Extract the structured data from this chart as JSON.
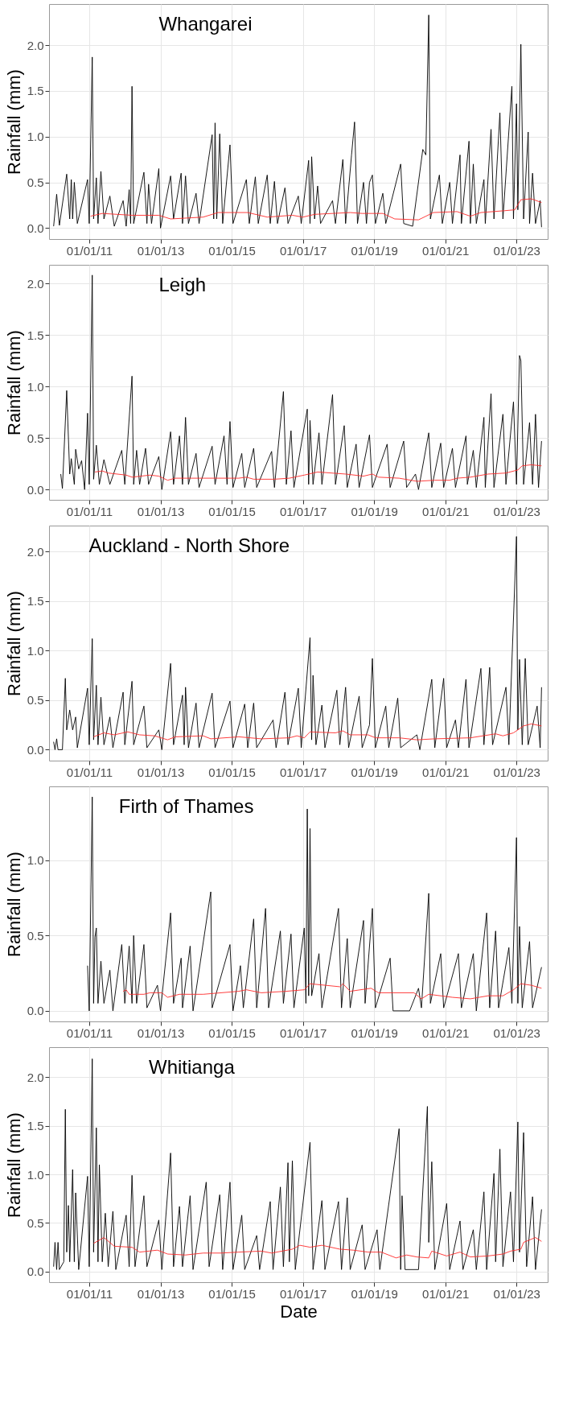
{
  "chart_data": [
    {
      "type": "line",
      "title": "Whangarei",
      "ylabel": "Rainfall (mm)",
      "grid": true,
      "xlim": [
        "2009-11-15",
        "2023-11-17"
      ],
      "xticks": [
        {
          "value": "2011-01-01",
          "label": "01/01/11"
        },
        {
          "value": "2013-01-01",
          "label": "01/01/13"
        },
        {
          "value": "2015-01-01",
          "label": "01/01/15"
        },
        {
          "value": "2017-01-01",
          "label": "01/01/17"
        },
        {
          "value": "2019-01-01",
          "label": "01/01/19"
        },
        {
          "value": "2021-01-01",
          "label": "01/01/21"
        },
        {
          "value": "2023-01-01",
          "label": "01/01/23"
        }
      ],
      "ylim": [
        -0.12,
        2.45
      ],
      "yticks": [
        {
          "value": 0,
          "label": "0.0"
        },
        {
          "value": 0.5,
          "label": "0.5"
        },
        {
          "value": 1,
          "label": "1.0"
        },
        {
          "value": 1.5,
          "label": "1.5"
        },
        {
          "value": 2,
          "label": "2.0"
        }
      ],
      "series": [
        {
          "color": "#000000",
          "x": [
            "2010-01-01",
            "2010-02-01",
            "2010-03-01",
            "2010-05-15",
            "2010-06-15",
            "2010-07-01",
            "2010-07-15",
            "2010-08-01",
            "2010-09-01",
            "2010-12-15",
            "2011-01-01",
            "2011-02-01",
            "2011-02-15",
            "2011-03-15",
            "2011-04-01",
            "2011-05-01",
            "2011-06-01",
            "2011-08-01",
            "2011-09-15",
            "2011-12-15",
            "2012-01-15",
            "2012-02-15",
            "2012-03-01",
            "2012-03-15",
            "2012-04-01",
            "2012-07-15",
            "2012-08-15",
            "2012-09-01",
            "2012-10-01",
            "2012-12-15",
            "2013-01-01",
            "2013-04-15",
            "2013-05-15",
            "2013-08-01",
            "2013-08-15",
            "2013-09-15",
            "2013-10-15",
            "2014-01-01",
            "2014-02-01",
            "2014-06-15",
            "2014-07-01",
            "2014-07-15",
            "2014-08-01",
            "2014-09-01",
            "2014-10-01",
            "2014-12-15",
            "2015-01-15",
            "2015-06-01",
            "2015-07-01",
            "2015-09-01",
            "2015-10-01",
            "2016-01-01",
            "2016-02-01",
            "2016-03-15",
            "2016-04-15",
            "2016-07-01",
            "2016-08-01",
            "2016-11-15",
            "2016-12-15",
            "2017-03-01",
            "2017-03-15",
            "2017-04-01",
            "2017-05-01",
            "2017-06-01",
            "2017-07-01",
            "2017-11-01",
            "2017-12-01",
            "2018-02-15",
            "2018-03-15",
            "2018-05-15",
            "2018-06-15",
            "2018-07-15",
            "2018-09-15",
            "2018-10-15",
            "2018-11-15",
            "2018-12-15",
            "2019-01-15",
            "2019-04-01",
            "2019-05-01",
            "2019-10-01",
            "2019-11-01",
            "2020-02-01",
            "2020-05-15",
            "2020-06-15",
            "2020-07-15",
            "2020-08-01",
            "2020-11-01",
            "2020-12-01",
            "2021-02-15",
            "2021-03-15",
            "2021-06-01",
            "2021-06-15",
            "2021-09-01",
            "2021-09-15",
            "2021-10-15",
            "2021-11-15",
            "2022-02-01",
            "2022-02-15",
            "2022-04-15",
            "2022-05-15",
            "2022-07-15",
            "2022-08-15",
            "2022-11-15",
            "2022-12-01",
            "2023-01-01",
            "2023-01-15",
            "2023-02-15",
            "2023-03-15",
            "2023-05-01",
            "2023-05-15",
            "2023-06-15",
            "2023-07-15",
            "2023-09-01",
            "2023-09-15"
          ],
          "values": [
            0.02,
            0.37,
            0.03,
            0.59,
            0.1,
            0.53,
            0.1,
            0.5,
            0.05,
            0.53,
            0.05,
            1.87,
            0.1,
            0.55,
            0.05,
            0.62,
            0.1,
            0.35,
            0.02,
            0.3,
            0.02,
            0.42,
            0.05,
            1.55,
            0.05,
            0.61,
            0.05,
            0.48,
            0.05,
            0.65,
            0.0,
            0.57,
            0.1,
            0.6,
            0.05,
            0.57,
            0.05,
            0.38,
            0.05,
            1.02,
            0.1,
            1.15,
            0.1,
            1.03,
            0.05,
            0.91,
            0.05,
            0.53,
            0.05,
            0.56,
            0.05,
            0.58,
            0.05,
            0.51,
            0.05,
            0.44,
            0.05,
            0.35,
            0.05,
            0.74,
            0.05,
            0.78,
            0.1,
            0.46,
            0.05,
            0.3,
            0.05,
            0.75,
            0.05,
            0.8,
            1.16,
            0.05,
            0.5,
            0.05,
            0.5,
            0.58,
            0.05,
            0.38,
            0.05,
            0.7,
            0.05,
            0.02,
            0.86,
            0.8,
            2.33,
            0.1,
            0.58,
            0.05,
            0.5,
            0.05,
            0.8,
            0.05,
            0.95,
            0.05,
            0.7,
            0.05,
            0.53,
            0.05,
            1.08,
            0.1,
            1.26,
            0.1,
            1.55,
            0.1,
            1.36,
            0.2,
            2.01,
            0.1,
            1.05,
            0.05,
            0.6,
            0.05,
            0.3,
            0.01
          ]
        },
        {
          "color": "#ff2a2a",
          "x": [
            "2011-01-15",
            "2011-05-15",
            "2012-03-15",
            "2012-12-15",
            "2013-04-15",
            "2014-03-15",
            "2014-08-15",
            "2015-06-15",
            "2016-01-01",
            "2016-09-15",
            "2017-01-01",
            "2017-05-01",
            "2018-05-01",
            "2018-09-01",
            "2019-04-01",
            "2019-08-01",
            "2020-04-01",
            "2020-09-01",
            "2021-05-01",
            "2021-09-15",
            "2022-01-01",
            "2022-09-01",
            "2022-12-15",
            "2023-02-15",
            "2023-06-01",
            "2023-09-15"
          ],
          "values": [
            0.13,
            0.16,
            0.14,
            0.14,
            0.1,
            0.12,
            0.17,
            0.17,
            0.12,
            0.14,
            0.12,
            0.15,
            0.17,
            0.16,
            0.16,
            0.1,
            0.09,
            0.17,
            0.18,
            0.13,
            0.17,
            0.19,
            0.2,
            0.31,
            0.32,
            0.28
          ]
        }
      ]
    },
    {
      "type": "line",
      "title": "Leigh",
      "ylabel": "Rainfall (mm)",
      "grid": true,
      "xlim": [
        "2009-11-15",
        "2023-11-17"
      ],
      "xticks": [
        {
          "value": "2011-01-01",
          "label": "01/01/11"
        },
        {
          "value": "2013-01-01",
          "label": "01/01/13"
        },
        {
          "value": "2015-01-01",
          "label": "01/01/15"
        },
        {
          "value": "2017-01-01",
          "label": "01/01/17"
        },
        {
          "value": "2019-01-01",
          "label": "01/01/19"
        },
        {
          "value": "2021-01-01",
          "label": "01/01/21"
        },
        {
          "value": "2023-01-01",
          "label": "01/01/23"
        }
      ],
      "ylim": [
        -0.1,
        2.18
      ],
      "yticks": [
        {
          "value": 0,
          "label": "0.0"
        },
        {
          "value": 0.5,
          "label": "0.5"
        },
        {
          "value": 1,
          "label": "1.0"
        },
        {
          "value": 1.5,
          "label": "1.5"
        },
        {
          "value": 2,
          "label": "2.0"
        }
      ],
      "series": [
        {
          "color": "#000000",
          "x": [
            "2010-03-15",
            "2010-04-01",
            "2010-05-15",
            "2010-06-15",
            "2010-07-01",
            "2010-08-01",
            "2010-08-15",
            "2010-09-15",
            "2010-10-15",
            "2010-11-15",
            "2010-12-15",
            "2011-01-01",
            "2011-02-01",
            "2011-02-15",
            "2011-03-15",
            "2011-04-15",
            "2011-06-01",
            "2011-08-01",
            "2011-12-01",
            "2012-01-01",
            "2012-03-15",
            "2012-04-01",
            "2012-05-01",
            "2012-06-01",
            "2012-08-01",
            "2012-09-01",
            "2012-12-15",
            "2013-01-15",
            "2013-04-15",
            "2013-05-15",
            "2013-07-15",
            "2013-08-15",
            "2013-09-15",
            "2013-10-15",
            "2014-01-01",
            "2014-02-01",
            "2014-06-15",
            "2014-07-15",
            "2014-10-15",
            "2014-11-15",
            "2014-12-15",
            "2015-01-15",
            "2015-04-15",
            "2015-05-15",
            "2015-08-15",
            "2015-09-15",
            "2016-02-15",
            "2016-03-15",
            "2016-06-15",
            "2016-07-15",
            "2016-09-01",
            "2016-10-01",
            "2017-02-15",
            "2017-03-01",
            "2017-03-15",
            "2017-04-15",
            "2017-06-15",
            "2017-07-15",
            "2017-11-01",
            "2017-12-01",
            "2018-03-01",
            "2018-04-01",
            "2018-07-01",
            "2018-08-01",
            "2018-11-15",
            "2018-12-15",
            "2019-05-15",
            "2019-06-15",
            "2019-11-01",
            "2019-12-01",
            "2020-03-01",
            "2020-04-01",
            "2020-07-15",
            "2020-08-15",
            "2020-11-15",
            "2020-12-15",
            "2021-03-15",
            "2021-04-15",
            "2021-08-01",
            "2021-08-15",
            "2021-10-15",
            "2021-11-15",
            "2022-02-01",
            "2022-02-15",
            "2022-04-15",
            "2022-05-15",
            "2022-08-15",
            "2022-09-15",
            "2022-12-01",
            "2023-01-01",
            "2023-02-01",
            "2023-02-15",
            "2023-03-15",
            "2023-05-15",
            "2023-06-15",
            "2023-07-15",
            "2023-08-15",
            "2023-09-15"
          ],
          "values": [
            0.15,
            0.01,
            0.96,
            0.15,
            0.3,
            0.05,
            0.39,
            0.2,
            0.28,
            0.0,
            0.74,
            0.05,
            2.08,
            0.1,
            0.43,
            0.05,
            0.29,
            0.05,
            0.38,
            0.05,
            1.1,
            0.05,
            0.38,
            0.05,
            0.4,
            0.05,
            0.32,
            0.0,
            0.56,
            0.05,
            0.52,
            0.05,
            0.7,
            0.05,
            0.35,
            0.02,
            0.42,
            0.05,
            0.52,
            0.05,
            0.66,
            0.02,
            0.35,
            0.02,
            0.4,
            0.02,
            0.37,
            0.02,
            0.95,
            0.05,
            0.57,
            0.02,
            0.78,
            0.05,
            0.67,
            0.05,
            0.55,
            0.05,
            0.92,
            0.05,
            0.62,
            0.02,
            0.44,
            0.02,
            0.53,
            0.02,
            0.44,
            0.02,
            0.47,
            0.02,
            0.15,
            0.0,
            0.55,
            0.02,
            0.45,
            0.02,
            0.4,
            0.02,
            0.52,
            0.05,
            0.38,
            0.02,
            0.7,
            0.02,
            0.93,
            0.02,
            0.73,
            0.05,
            0.85,
            0.05,
            1.3,
            1.25,
            0.05,
            0.65,
            0.05,
            0.73,
            0.02,
            0.47
          ]
        },
        {
          "color": "#ff2a2a",
          "x": [
            "2011-03-01",
            "2011-05-15",
            "2011-07-15",
            "2012-01-15",
            "2012-03-15",
            "2012-09-15",
            "2012-12-15",
            "2013-03-15",
            "2013-06-01",
            "2014-03-15",
            "2015-03-15",
            "2015-06-01",
            "2015-08-15",
            "2016-03-15",
            "2016-08-15",
            "2017-01-15",
            "2017-06-01",
            "2018-03-15",
            "2018-09-15",
            "2018-12-15",
            "2019-02-15",
            "2019-09-15",
            "2020-03-15",
            "2020-09-15",
            "2021-02-15",
            "2021-05-01",
            "2021-09-15",
            "2022-03-15",
            "2022-09-15",
            "2023-01-15",
            "2023-03-01",
            "2023-06-01",
            "2023-09-15"
          ],
          "values": [
            0.17,
            0.18,
            0.16,
            0.14,
            0.12,
            0.14,
            0.13,
            0.09,
            0.11,
            0.11,
            0.11,
            0.12,
            0.1,
            0.1,
            0.11,
            0.14,
            0.17,
            0.15,
            0.13,
            0.15,
            0.12,
            0.11,
            0.08,
            0.09,
            0.09,
            0.11,
            0.12,
            0.15,
            0.16,
            0.19,
            0.23,
            0.24,
            0.23
          ]
        }
      ]
    },
    {
      "type": "line",
      "title": "Auckland - North Shore",
      "ylabel": "Rainfall (mm)",
      "grid": true,
      "xlim": [
        "2009-11-15",
        "2023-11-17"
      ],
      "xticks": [
        {
          "value": "2011-01-01",
          "label": "01/01/11"
        },
        {
          "value": "2013-01-01",
          "label": "01/01/13"
        },
        {
          "value": "2015-01-01",
          "label": "01/01/15"
        },
        {
          "value": "2017-01-01",
          "label": "01/01/17"
        },
        {
          "value": "2019-01-01",
          "label": "01/01/19"
        },
        {
          "value": "2021-01-01",
          "label": "01/01/21"
        },
        {
          "value": "2023-01-01",
          "label": "01/01/23"
        }
      ],
      "ylim": [
        -0.11,
        2.26
      ],
      "yticks": [
        {
          "value": 0,
          "label": "0.0"
        },
        {
          "value": 0.5,
          "label": "0.5"
        },
        {
          "value": 1,
          "label": "1.0"
        },
        {
          "value": 1.5,
          "label": "1.5"
        },
        {
          "value": 2,
          "label": "2.0"
        }
      ],
      "series": [
        {
          "color": "#000000",
          "x": [
            "2010-01-01",
            "2010-01-15",
            "2010-02-01",
            "2010-02-15",
            "2010-04-01",
            "2010-05-01",
            "2010-05-15",
            "2010-06-15",
            "2010-07-15",
            "2010-08-15",
            "2010-09-01",
            "2010-12-15",
            "2011-01-01",
            "2011-02-01",
            "2011-02-15",
            "2011-03-15",
            "2011-04-01",
            "2011-05-01",
            "2011-06-01",
            "2011-08-01",
            "2011-09-01",
            "2011-12-15",
            "2012-01-01",
            "2012-03-15",
            "2012-04-01",
            "2012-07-15",
            "2012-08-15",
            "2012-12-15",
            "2013-01-15",
            "2013-04-15",
            "2013-05-15",
            "2013-08-15",
            "2013-09-01",
            "2013-09-15",
            "2013-10-15",
            "2014-01-01",
            "2014-02-01",
            "2014-06-15",
            "2014-07-15",
            "2014-12-15",
            "2015-01-15",
            "2015-05-15",
            "2015-06-15",
            "2015-08-15",
            "2015-09-15",
            "2016-03-01",
            "2016-04-01",
            "2016-07-01",
            "2016-08-01",
            "2016-11-15",
            "2016-12-15",
            "2017-03-15",
            "2017-04-01",
            "2017-04-15",
            "2017-05-15",
            "2017-07-15",
            "2017-08-15",
            "2017-12-15",
            "2018-01-15",
            "2018-03-15",
            "2018-04-15",
            "2018-08-01",
            "2018-09-01",
            "2018-11-15",
            "2018-12-15",
            "2019-01-15",
            "2019-05-01",
            "2019-06-01",
            "2019-09-01",
            "2019-10-01",
            "2020-03-15",
            "2020-04-15",
            "2020-08-15",
            "2020-09-15",
            "2020-12-15",
            "2021-01-15",
            "2021-04-15",
            "2021-05-15",
            "2021-08-01",
            "2021-09-01",
            "2022-01-01",
            "2022-02-01",
            "2022-04-01",
            "2022-05-01",
            "2022-09-15",
            "2022-10-15",
            "2023-01-01",
            "2023-01-15",
            "2023-02-01",
            "2023-03-01",
            "2023-04-01",
            "2023-05-01",
            "2023-08-01",
            "2023-09-01",
            "2023-09-15"
          ],
          "values": [
            0.08,
            0.0,
            0.11,
            0.0,
            0.0,
            0.72,
            0.2,
            0.4,
            0.2,
            0.33,
            0.02,
            0.62,
            0.05,
            1.12,
            0.1,
            0.65,
            0.05,
            0.53,
            0.05,
            0.33,
            0.02,
            0.58,
            0.05,
            0.69,
            0.05,
            0.44,
            0.02,
            0.2,
            0.0,
            0.87,
            0.05,
            0.55,
            0.05,
            0.63,
            0.02,
            0.47,
            0.02,
            0.57,
            0.02,
            0.49,
            0.02,
            0.46,
            0.02,
            0.47,
            0.02,
            0.3,
            0.02,
            0.58,
            0.05,
            0.62,
            0.02,
            1.13,
            0.1,
            0.75,
            0.05,
            0.45,
            0.02,
            0.6,
            0.05,
            0.63,
            0.02,
            0.54,
            0.02,
            0.25,
            0.92,
            0.02,
            0.44,
            0.02,
            0.52,
            0.02,
            0.15,
            0.0,
            0.71,
            0.02,
            0.72,
            0.02,
            0.3,
            0.02,
            0.71,
            0.02,
            0.82,
            0.05,
            0.83,
            0.05,
            0.63,
            0.05,
            2.15,
            0.2,
            0.91,
            0.05,
            0.92,
            0.05,
            0.44,
            0.02,
            0.63
          ]
        },
        {
          "color": "#ff2a2a",
          "x": [
            "2011-02-15",
            "2011-06-01",
            "2011-09-15",
            "2012-02-01",
            "2012-06-01",
            "2012-11-01",
            "2013-03-15",
            "2013-06-01",
            "2014-03-15",
            "2014-06-01",
            "2015-03-15",
            "2015-11-01",
            "2016-08-15",
            "2016-11-01",
            "2017-01-15",
            "2017-03-15",
            "2017-12-01",
            "2018-02-15",
            "2018-05-01",
            "2018-11-01",
            "2019-01-15",
            "2019-09-15",
            "2020-03-15",
            "2020-09-15",
            "2021-09-15",
            "2022-06-01",
            "2022-08-15",
            "2022-12-01",
            "2023-03-15",
            "2023-06-01",
            "2023-09-15"
          ],
          "values": [
            0.13,
            0.17,
            0.15,
            0.18,
            0.15,
            0.14,
            0.1,
            0.13,
            0.14,
            0.11,
            0.13,
            0.11,
            0.12,
            0.14,
            0.12,
            0.18,
            0.17,
            0.19,
            0.15,
            0.15,
            0.12,
            0.12,
            0.1,
            0.11,
            0.12,
            0.16,
            0.14,
            0.17,
            0.24,
            0.26,
            0.24
          ]
        }
      ]
    },
    {
      "type": "line",
      "title": "Firth of Thames",
      "ylabel": "Rainfall (mm)",
      "grid": true,
      "xlim": [
        "2009-11-15",
        "2023-11-17"
      ],
      "xticks": [
        {
          "value": "2011-01-01",
          "label": "01/01/11"
        },
        {
          "value": "2013-01-01",
          "label": "01/01/13"
        },
        {
          "value": "2015-01-01",
          "label": "01/01/15"
        },
        {
          "value": "2017-01-01",
          "label": "01/01/17"
        },
        {
          "value": "2019-01-01",
          "label": "01/01/19"
        },
        {
          "value": "2021-01-01",
          "label": "01/01/21"
        },
        {
          "value": "2023-01-01",
          "label": "01/01/23"
        }
      ],
      "ylim": [
        -0.07,
        1.49
      ],
      "yticks": [
        {
          "value": 0,
          "label": "0.0"
        },
        {
          "value": 0.5,
          "label": "0.5"
        },
        {
          "value": 1,
          "label": "1.0"
        }
      ],
      "series": [
        {
          "color": "#000000",
          "x": [
            "2010-12-15",
            "2011-01-01",
            "2011-02-01",
            "2011-02-15",
            "2011-03-01",
            "2011-03-15",
            "2011-04-01",
            "2011-05-01",
            "2011-06-01",
            "2011-08-01",
            "2011-09-01",
            "2011-12-01",
            "2012-01-01",
            "2012-02-15",
            "2012-03-15",
            "2012-04-01",
            "2012-05-01",
            "2012-07-15",
            "2012-08-15",
            "2012-12-01",
            "2013-01-01",
            "2013-04-15",
            "2013-05-15",
            "2013-08-01",
            "2013-08-15",
            "2013-11-01",
            "2013-12-01",
            "2014-06-01",
            "2014-06-15",
            "2014-12-15",
            "2015-01-15",
            "2015-04-01",
            "2015-05-01",
            "2015-08-15",
            "2015-09-15",
            "2015-12-15",
            "2016-01-15",
            "2016-05-15",
            "2016-06-15",
            "2016-09-01",
            "2016-10-01",
            "2017-01-15",
            "2017-02-01",
            "2017-02-15",
            "2017-03-01",
            "2017-03-15",
            "2017-04-01",
            "2017-06-15",
            "2017-07-15",
            "2018-01-01",
            "2018-02-01",
            "2018-04-01",
            "2018-05-01",
            "2018-09-15",
            "2018-10-01",
            "2018-12-15",
            "2019-01-15",
            "2019-06-15",
            "2019-07-15",
            "2020-01-01",
            "2020-04-01",
            "2020-05-01",
            "2020-07-15",
            "2020-08-01",
            "2020-11-15",
            "2020-12-15",
            "2021-05-15",
            "2021-06-15",
            "2021-10-15",
            "2021-11-15",
            "2022-03-01",
            "2022-04-01",
            "2022-06-01",
            "2022-07-01",
            "2022-10-15",
            "2022-11-15",
            "2023-01-01",
            "2023-01-15",
            "2023-02-01",
            "2023-03-01",
            "2023-05-15",
            "2023-06-15",
            "2023-09-15"
          ],
          "values": [
            0.3,
            0.0,
            1.42,
            0.05,
            0.49,
            0.55,
            0.05,
            0.33,
            0.05,
            0.27,
            0.0,
            0.44,
            0.05,
            0.43,
            0.05,
            0.5,
            0.05,
            0.44,
            0.02,
            0.17,
            0.0,
            0.65,
            0.05,
            0.35,
            0.02,
            0.43,
            0.0,
            0.79,
            0.02,
            0.44,
            0.0,
            0.3,
            0.02,
            0.61,
            0.02,
            0.68,
            0.02,
            0.53,
            0.05,
            0.51,
            0.02,
            0.55,
            0.05,
            1.34,
            0.1,
            1.21,
            0.1,
            0.38,
            0.02,
            0.68,
            0.02,
            0.48,
            0.02,
            0.6,
            0.05,
            0.68,
            0.02,
            0.35,
            0.0,
            0.0,
            0.15,
            0.02,
            0.78,
            0.05,
            0.38,
            0.02,
            0.38,
            0.02,
            0.38,
            0.0,
            0.65,
            0.02,
            0.53,
            0.02,
            0.42,
            0.05,
            1.15,
            0.05,
            0.56,
            0.02,
            0.46,
            0.02,
            0.29
          ]
        },
        {
          "color": "#ff2a2a",
          "x": [
            "2011-12-15",
            "2012-01-15",
            "2012-02-15",
            "2012-07-15",
            "2012-09-15",
            "2013-01-15",
            "2013-03-15",
            "2013-07-15",
            "2014-03-15",
            "2015-03-15",
            "2015-06-01",
            "2015-11-01",
            "2016-07-15",
            "2017-01-15",
            "2017-03-15",
            "2018-01-15",
            "2018-02-15",
            "2018-05-01",
            "2018-12-01",
            "2019-02-15",
            "2020-02-15",
            "2020-05-01",
            "2020-07-15",
            "2021-03-15",
            "2021-09-15",
            "2022-03-15",
            "2022-08-15",
            "2022-12-01",
            "2023-02-15",
            "2023-06-01",
            "2023-09-15"
          ],
          "values": [
            0.13,
            0.14,
            0.11,
            0.11,
            0.12,
            0.12,
            0.09,
            0.11,
            0.11,
            0.13,
            0.14,
            0.12,
            0.13,
            0.14,
            0.18,
            0.16,
            0.18,
            0.13,
            0.15,
            0.12,
            0.12,
            0.08,
            0.11,
            0.09,
            0.08,
            0.1,
            0.1,
            0.14,
            0.18,
            0.17,
            0.15
          ]
        }
      ]
    },
    {
      "type": "line",
      "title": "Whitianga",
      "xlabel": "Date",
      "ylabel": "Rainfall (mm)",
      "grid": true,
      "xlim": [
        "2009-11-15",
        "2023-11-17"
      ],
      "xticks": [
        {
          "value": "2011-01-01",
          "label": "01/01/11"
        },
        {
          "value": "2013-01-01",
          "label": "01/01/13"
        },
        {
          "value": "2015-01-01",
          "label": "01/01/15"
        },
        {
          "value": "2017-01-01",
          "label": "01/01/17"
        },
        {
          "value": "2019-01-01",
          "label": "01/01/19"
        },
        {
          "value": "2021-01-01",
          "label": "01/01/21"
        },
        {
          "value": "2023-01-01",
          "label": "01/01/23"
        }
      ],
      "ylim": [
        -0.11,
        2.31
      ],
      "yticks": [
        {
          "value": 0,
          "label": "0.0"
        },
        {
          "value": 0.5,
          "label": "0.5"
        },
        {
          "value": 1,
          "label": "1.0"
        },
        {
          "value": 1.5,
          "label": "1.5"
        },
        {
          "value": 2,
          "label": "2.0"
        }
      ],
      "series": [
        {
          "color": "#000000",
          "x": [
            "2010-01-01",
            "2010-01-15",
            "2010-02-01",
            "2010-02-15",
            "2010-03-01",
            "2010-04-15",
            "2010-05-01",
            "2010-05-15",
            "2010-06-01",
            "2010-06-15",
            "2010-07-15",
            "2010-08-01",
            "2010-08-15",
            "2010-09-15",
            "2010-12-15",
            "2011-01-01",
            "2011-02-01",
            "2011-02-15",
            "2011-03-15",
            "2011-04-01",
            "2011-04-15",
            "2011-05-15",
            "2011-06-15",
            "2011-07-15",
            "2011-09-01",
            "2011-10-01",
            "2012-01-15",
            "2012-02-15",
            "2012-03-15",
            "2012-04-15",
            "2012-07-15",
            "2012-08-15",
            "2012-12-15",
            "2013-01-15",
            "2013-04-15",
            "2013-05-15",
            "2013-07-15",
            "2013-08-15",
            "2013-11-01",
            "2013-12-01",
            "2014-04-15",
            "2014-05-15",
            "2014-09-01",
            "2014-10-01",
            "2014-12-15",
            "2015-01-15",
            "2015-04-15",
            "2015-05-15",
            "2015-09-15",
            "2015-10-15",
            "2016-02-01",
            "2016-03-01",
            "2016-05-15",
            "2016-06-15",
            "2016-08-01",
            "2016-08-15",
            "2016-09-15",
            "2016-10-15",
            "2017-03-15",
            "2017-04-15",
            "2017-07-15",
            "2017-08-15",
            "2018-01-01",
            "2018-02-01",
            "2018-04-01",
            "2018-05-01",
            "2018-09-01",
            "2018-10-01",
            "2019-02-01",
            "2019-03-01",
            "2019-09-15",
            "2019-10-01",
            "2019-10-15",
            "2019-11-15",
            "2020-04-01",
            "2020-07-01",
            "2020-07-15",
            "2020-08-15",
            "2020-09-15",
            "2021-01-15",
            "2021-02-15",
            "2021-06-01",
            "2021-07-01",
            "2021-10-15",
            "2021-11-15",
            "2022-02-01",
            "2022-03-01",
            "2022-05-15",
            "2022-06-01",
            "2022-07-15",
            "2022-08-15",
            "2022-11-01",
            "2022-12-01",
            "2023-01-15",
            "2023-02-01",
            "2023-03-15",
            "2023-04-15",
            "2023-06-15",
            "2023-07-15",
            "2023-09-15"
          ],
          "values": [
            0.05,
            0.3,
            0.02,
            0.3,
            0.02,
            0.1,
            1.67,
            0.2,
            0.68,
            0.1,
            1.05,
            0.1,
            0.81,
            0.02,
            0.98,
            0.05,
            2.19,
            0.2,
            1.48,
            0.1,
            1.1,
            0.1,
            0.6,
            0.05,
            0.62,
            0.02,
            0.58,
            0.05,
            0.99,
            0.05,
            0.78,
            0.05,
            0.53,
            0.02,
            1.22,
            0.05,
            0.67,
            0.05,
            0.78,
            0.02,
            0.92,
            0.05,
            0.79,
            0.02,
            0.92,
            0.02,
            0.58,
            0.02,
            0.37,
            0.02,
            0.72,
            0.02,
            0.87,
            0.05,
            1.12,
            0.1,
            1.14,
            0.02,
            1.33,
            0.02,
            0.73,
            0.02,
            0.72,
            0.02,
            0.76,
            0.02,
            0.48,
            0.02,
            0.43,
            0.02,
            1.47,
            0.02,
            0.78,
            0.02,
            0.02,
            1.7,
            0.3,
            1.13,
            0.02,
            0.7,
            0.02,
            0.52,
            0.02,
            0.43,
            0.02,
            0.82,
            0.02,
            1.01,
            0.1,
            1.26,
            0.05,
            0.82,
            0.1,
            1.54,
            0.2,
            1.43,
            0.05,
            0.77,
            0.02,
            0.64
          ]
        },
        {
          "color": "#ff2a2a",
          "x": [
            "2011-02-15",
            "2011-06-01",
            "2011-09-15",
            "2012-03-15",
            "2012-06-01",
            "2012-12-01",
            "2013-03-15",
            "2013-09-15",
            "2014-03-15",
            "2014-09-15",
            "2015-03-15",
            "2015-11-01",
            "2016-02-15",
            "2016-09-15",
            "2016-12-01",
            "2017-03-15",
            "2017-07-15",
            "2018-01-15",
            "2018-06-01",
            "2018-11-01",
            "2019-03-15",
            "2019-08-15",
            "2019-12-01",
            "2020-03-15",
            "2020-07-15",
            "2020-08-15",
            "2021-01-15",
            "2021-06-01",
            "2021-09-15",
            "2022-03-15",
            "2022-08-15",
            "2022-11-01",
            "2023-02-15",
            "2023-03-15",
            "2023-07-15",
            "2023-09-15"
          ],
          "values": [
            0.29,
            0.35,
            0.26,
            0.25,
            0.2,
            0.22,
            0.18,
            0.17,
            0.19,
            0.19,
            0.2,
            0.21,
            0.19,
            0.23,
            0.27,
            0.25,
            0.27,
            0.23,
            0.22,
            0.2,
            0.2,
            0.14,
            0.17,
            0.15,
            0.14,
            0.21,
            0.16,
            0.2,
            0.15,
            0.16,
            0.18,
            0.21,
            0.23,
            0.3,
            0.35,
            0.31
          ]
        }
      ]
    }
  ]
}
